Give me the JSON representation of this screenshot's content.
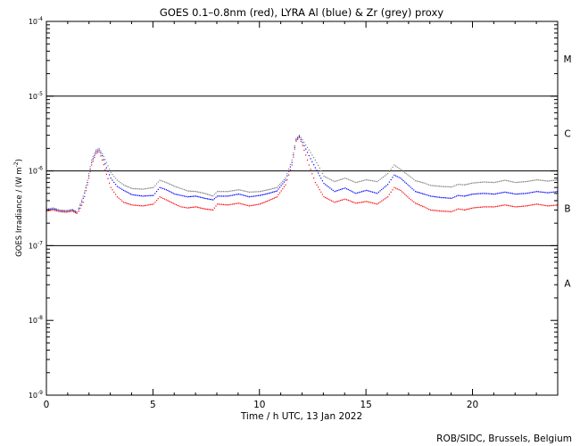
{
  "chart_data": {
    "type": "scatter",
    "title": "GOES 0.1–0.8nm (red), LYRA Al (blue) & Zr (grey) proxy",
    "xlabel": "Time / h UTC, 13 Jan 2022",
    "ylabel_main": "GOES Irradiance / (W m",
    "ylabel_sup": "-2",
    "ylabel_end": ")",
    "xlim": [
      0,
      24
    ],
    "ylim": [
      1e-09,
      0.0001
    ],
    "yscale": "log",
    "x_ticks": [
      {
        "value": 0,
        "label": "0"
      },
      {
        "value": 5,
        "label": "5"
      },
      {
        "value": 10,
        "label": "10"
      },
      {
        "value": 15,
        "label": "15"
      },
      {
        "value": 20,
        "label": "20"
      }
    ],
    "y_ticks": [
      {
        "value": 1e-09,
        "base": "10",
        "exp": "-9"
      },
      {
        "value": 1e-08,
        "base": "10",
        "exp": "-8"
      },
      {
        "value": 1e-07,
        "base": "10",
        "exp": "-7"
      },
      {
        "value": 1e-06,
        "base": "10",
        "exp": "-6"
      },
      {
        "value": 1e-05,
        "base": "10",
        "exp": "-5"
      },
      {
        "value": 0.0001,
        "base": "10",
        "exp": "-4"
      }
    ],
    "class_lines": [
      1e-07,
      1e-06,
      1e-05
    ],
    "flare_classes": [
      {
        "label": "A",
        "value": 3.16e-08
      },
      {
        "label": "B",
        "value": 3.16e-07
      },
      {
        "label": "C",
        "value": 3.16e-06
      },
      {
        "label": "M",
        "value": 3.16e-05
      }
    ],
    "series": [
      {
        "color": "#ff0000",
        "x": [
          0,
          0.3,
          0.6,
          0.9,
          1.2,
          1.4,
          1.5,
          1.7,
          1.9,
          2.1,
          2.3,
          2.45,
          2.6,
          2.8,
          3.0,
          3.3,
          3.6,
          4.0,
          4.5,
          5.0,
          5.3,
          5.6,
          6.0,
          6.3,
          6.6,
          7.0,
          7.4,
          7.8,
          8.0,
          8.5,
          9.0,
          9.5,
          10.0,
          10.4,
          10.8,
          11.2,
          11.5,
          11.7,
          11.85,
          12.0,
          12.3,
          12.6,
          13.0,
          13.5,
          14.0,
          14.5,
          15.0,
          15.5,
          16.0,
          16.3,
          16.6,
          17.0,
          17.3,
          17.7,
          18.0,
          18.5,
          19.0,
          19.3,
          19.6,
          20.0,
          20.5,
          21.0,
          21.5,
          22.0,
          22.5,
          23.0,
          23.5,
          24.0
        ],
        "y": [
          2.9e-07,
          3e-07,
          2.85e-07,
          2.8e-07,
          2.9e-07,
          2.7e-07,
          2.9e-07,
          3.8e-07,
          6.5e-07,
          1.2e-06,
          1.7e-06,
          1.8e-06,
          1.4e-06,
          9e-07,
          6e-07,
          4.5e-07,
          3.8e-07,
          3.5e-07,
          3.4e-07,
          3.6e-07,
          4.5e-07,
          4.1e-07,
          3.6e-07,
          3.3e-07,
          3.2e-07,
          3.3e-07,
          3.1e-07,
          3e-07,
          3.6e-07,
          3.5e-07,
          3.7e-07,
          3.4e-07,
          3.6e-07,
          4e-07,
          4.5e-07,
          6.5e-07,
          1.2e-06,
          2.5e-06,
          2.8e-06,
          2.2e-06,
          1.2e-06,
          7e-07,
          4.5e-07,
          3.8e-07,
          4.2e-07,
          3.7e-07,
          3.9e-07,
          3.6e-07,
          4.5e-07,
          6e-07,
          5.5e-07,
          4.3e-07,
          3.7e-07,
          3.3e-07,
          3e-07,
          2.9e-07,
          2.85e-07,
          3.1e-07,
          3e-07,
          3.2e-07,
          3.3e-07,
          3.3e-07,
          3.5e-07,
          3.3e-07,
          3.4e-07,
          3.6e-07,
          3.4e-07,
          3.5e-07
        ]
      },
      {
        "color": "#0000ff",
        "x": [
          0,
          0.3,
          0.6,
          0.9,
          1.2,
          1.4,
          1.5,
          1.7,
          1.9,
          2.1,
          2.3,
          2.45,
          2.6,
          2.8,
          3.0,
          3.3,
          3.6,
          4.0,
          4.5,
          5.0,
          5.3,
          5.6,
          6.0,
          6.3,
          6.6,
          7.0,
          7.4,
          7.8,
          8.0,
          8.5,
          9.0,
          9.5,
          10.0,
          10.4,
          10.8,
          11.2,
          11.5,
          11.7,
          11.85,
          12.0,
          12.3,
          12.6,
          13.0,
          13.5,
          14.0,
          14.5,
          15.0,
          15.5,
          16.0,
          16.3,
          16.6,
          17.0,
          17.3,
          17.7,
          18.0,
          18.5,
          19.0,
          19.3,
          19.6,
          20.0,
          20.5,
          21.0,
          21.5,
          22.0,
          22.5,
          23.0,
          23.5,
          24.0
        ],
        "y": [
          3e-07,
          3.1e-07,
          2.95e-07,
          2.9e-07,
          3e-07,
          2.8e-07,
          3.1e-07,
          4.3e-07,
          7e-07,
          1.3e-06,
          1.8e-06,
          1.9e-06,
          1.6e-06,
          1.1e-06,
          8e-07,
          6.2e-07,
          5.5e-07,
          4.8e-07,
          4.6e-07,
          4.7e-07,
          6e-07,
          5.6e-07,
          4.9e-07,
          4.7e-07,
          4.5e-07,
          4.6e-07,
          4.3e-07,
          4.1e-07,
          4.6e-07,
          4.6e-07,
          4.9e-07,
          4.5e-07,
          4.7e-07,
          5e-07,
          5.4e-07,
          7.5e-07,
          1.3e-06,
          2.6e-06,
          2.9e-06,
          2.4e-06,
          1.6e-06,
          1.1e-06,
          6.8e-07,
          5.3e-07,
          5.9e-07,
          5e-07,
          5.5e-07,
          5e-07,
          6.6e-07,
          8.8e-07,
          8e-07,
          6.3e-07,
          5.3e-07,
          4.9e-07,
          4.6e-07,
          4.4e-07,
          4.3e-07,
          4.7e-07,
          4.6e-07,
          4.9e-07,
          5e-07,
          4.9e-07,
          5.2e-07,
          4.9e-07,
          5e-07,
          5.3e-07,
          5.1e-07,
          5.3e-07
        ]
      },
      {
        "color": "#808080",
        "x": [
          0,
          0.3,
          0.6,
          0.9,
          1.2,
          1.4,
          1.5,
          1.7,
          1.9,
          2.1,
          2.3,
          2.45,
          2.6,
          2.8,
          3.0,
          3.3,
          3.6,
          4.0,
          4.5,
          5.0,
          5.3,
          5.6,
          6.0,
          6.3,
          6.6,
          7.0,
          7.4,
          7.8,
          8.0,
          8.5,
          9.0,
          9.5,
          10.0,
          10.4,
          10.8,
          11.2,
          11.5,
          11.7,
          11.85,
          12.0,
          12.3,
          12.6,
          13.0,
          13.5,
          14.0,
          14.5,
          15.0,
          15.5,
          16.0,
          16.3,
          16.6,
          17.0,
          17.3,
          17.7,
          18.0,
          18.5,
          19.0,
          19.3,
          19.6,
          20.0,
          20.5,
          21.0,
          21.5,
          22.0,
          22.5,
          23.0,
          23.5,
          24.0
        ],
        "y": [
          3.1e-07,
          3.2e-07,
          3e-07,
          2.95e-07,
          3.05e-07,
          2.85e-07,
          3.2e-07,
          4.6e-07,
          7.5e-07,
          1.4e-06,
          1.9e-06,
          2e-06,
          1.7e-06,
          1.3e-06,
          9.5e-07,
          7.5e-07,
          6.5e-07,
          5.8e-07,
          5.7e-07,
          6e-07,
          7.5e-07,
          7e-07,
          6.2e-07,
          5.8e-07,
          5.4e-07,
          5.3e-07,
          5e-07,
          4.6e-07,
          5.3e-07,
          5.3e-07,
          5.6e-07,
          5.2e-07,
          5.3e-07,
          5.6e-07,
          6e-07,
          8e-07,
          1.4e-06,
          2.7e-06,
          3e-06,
          2.6e-06,
          1.9e-06,
          1.4e-06,
          8.5e-07,
          7.2e-07,
          8e-07,
          7e-07,
          7.6e-07,
          7.2e-07,
          9.2e-07,
          1.2e-06,
          1.05e-06,
          8.6e-07,
          7.4e-07,
          6.9e-07,
          6.4e-07,
          6.2e-07,
          6.1e-07,
          6.6e-07,
          6.5e-07,
          6.9e-07,
          7.1e-07,
          7e-07,
          7.5e-07,
          7e-07,
          7.2e-07,
          7.6e-07,
          7.3e-07,
          7.6e-07
        ]
      }
    ]
  },
  "footer": {
    "credit": "ROB/SIDC, Brussels, Belgium"
  }
}
